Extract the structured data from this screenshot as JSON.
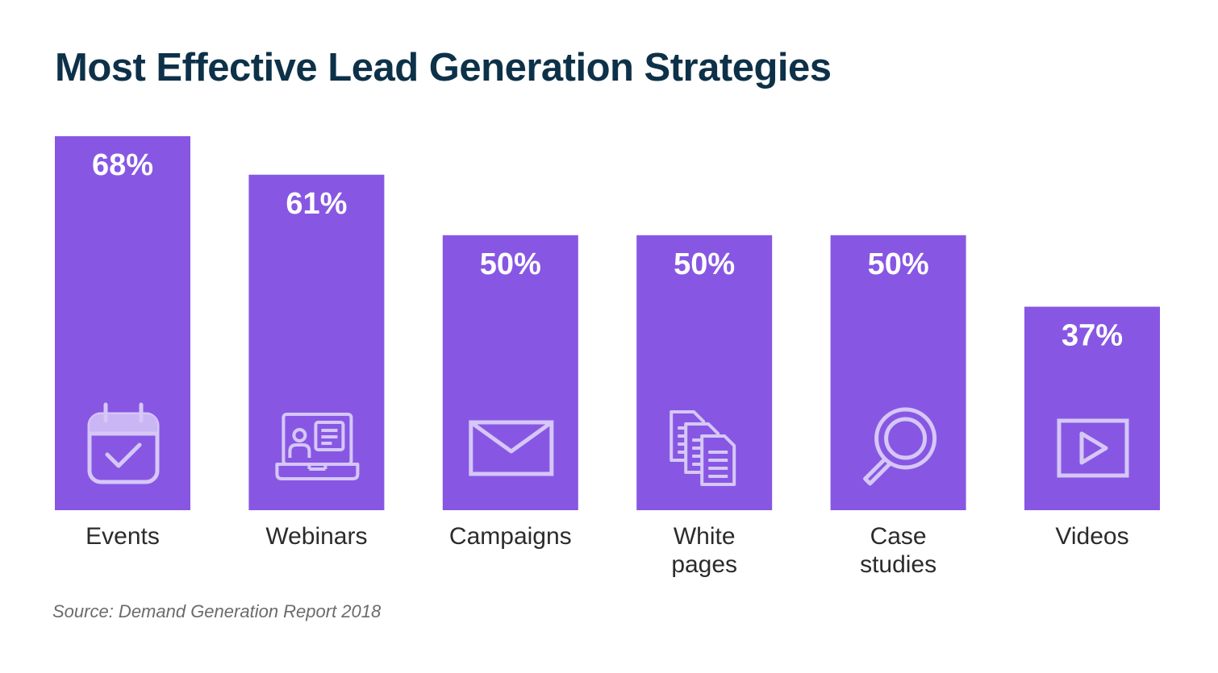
{
  "chart_data": {
    "type": "bar",
    "title": "Most Effective Lead Generation Strategies",
    "categories": [
      "Events",
      "Webinars",
      "Campaigns",
      "White pages",
      "Case studies",
      "Videos"
    ],
    "category_lines": [
      [
        "Events"
      ],
      [
        "Webinars"
      ],
      [
        "Campaigns"
      ],
      [
        "White",
        "pages"
      ],
      [
        "Case",
        "studies"
      ],
      [
        "Videos"
      ]
    ],
    "values": [
      68,
      61,
      50,
      50,
      50,
      37
    ],
    "value_labels": [
      "68%",
      "61%",
      "50%",
      "50%",
      "50%",
      "37%"
    ],
    "icons": [
      "calendar-check-icon",
      "laptop-profile-icon",
      "envelope-icon",
      "documents-icon",
      "magnifier-icon",
      "video-play-icon"
    ],
    "ylim": [
      0,
      68
    ],
    "xlabel": "",
    "ylabel": "",
    "grid": false,
    "legend": "none"
  },
  "source": "Source: Demand Generation Report 2018",
  "colors": {
    "bar": "#8757e3",
    "title": "#0d3148",
    "value_text": "#ffffff",
    "category_text": "#2b2b2b",
    "source_text": "#6b6b6b",
    "icon_stroke": "#d6c7f7",
    "icon_fill": "#cbb6f5"
  }
}
